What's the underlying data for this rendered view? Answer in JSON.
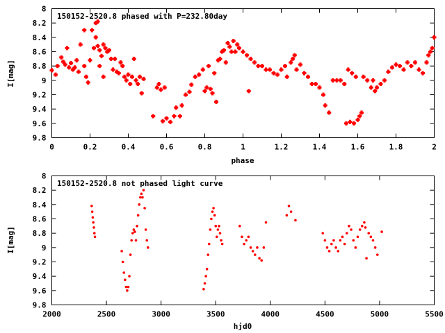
{
  "chart_data": [
    {
      "type": "scatter",
      "title": "150152-2520.8 phased with P=232.80day",
      "xlabel": "phase",
      "ylabel": "I[mag]",
      "xlim": [
        0,
        2
      ],
      "ylim": [
        8,
        9.8
      ],
      "y_inverted": true,
      "xticks": [
        "0",
        "0.2",
        "0.4",
        "0.6",
        "0.8",
        "1",
        "1.2",
        "1.4",
        "1.6",
        "1.8",
        "2"
      ],
      "yticks": [
        "8",
        "8.2",
        "8.4",
        "8.6",
        "8.8",
        "9",
        "9.2",
        "9.4",
        "9.6",
        "9.8"
      ],
      "marker_color": "#ff0000",
      "series": [
        {
          "points": [
            [
              0.0,
              8.86
            ],
            [
              0.02,
              8.92
            ],
            [
              0.03,
              8.8
            ],
            [
              0.05,
              8.68
            ],
            [
              0.06,
              8.74
            ],
            [
              0.07,
              8.78
            ],
            [
              0.08,
              8.55
            ],
            [
              0.09,
              8.82
            ],
            [
              0.1,
              8.76
            ],
            [
              0.11,
              8.85
            ],
            [
              0.12,
              8.82
            ],
            [
              0.13,
              8.72
            ],
            [
              0.14,
              8.88
            ],
            [
              0.15,
              8.5
            ],
            [
              0.17,
              8.3
            ],
            [
              0.17,
              8.8
            ],
            [
              0.18,
              8.95
            ],
            [
              0.19,
              9.03
            ],
            [
              0.2,
              8.72
            ],
            [
              0.21,
              8.3
            ],
            [
              0.22,
              8.55
            ],
            [
              0.23,
              8.2
            ],
            [
              0.23,
              8.4
            ],
            [
              0.24,
              8.18
            ],
            [
              0.24,
              8.52
            ],
            [
              0.25,
              8.8
            ],
            [
              0.25,
              8.58
            ],
            [
              0.26,
              8.66
            ],
            [
              0.27,
              8.5
            ],
            [
              0.27,
              8.95
            ],
            [
              0.28,
              8.55
            ],
            [
              0.29,
              8.6
            ],
            [
              0.3,
              8.58
            ],
            [
              0.31,
              8.7
            ],
            [
              0.32,
              8.85
            ],
            [
              0.33,
              8.7
            ],
            [
              0.34,
              8.88
            ],
            [
              0.35,
              8.9
            ],
            [
              0.36,
              8.75
            ],
            [
              0.37,
              8.8
            ],
            [
              0.38,
              8.95
            ],
            [
              0.39,
              9.0
            ],
            [
              0.4,
              8.92
            ],
            [
              0.41,
              9.05
            ],
            [
              0.42,
              8.95
            ],
            [
              0.43,
              8.7
            ],
            [
              0.44,
              9.0
            ],
            [
              0.45,
              9.05
            ],
            [
              0.46,
              8.95
            ],
            [
              0.47,
              9.18
            ],
            [
              0.48,
              8.98
            ],
            [
              0.53,
              9.5
            ],
            [
              0.55,
              9.1
            ],
            [
              0.56,
              9.05
            ],
            [
              0.57,
              9.13
            ],
            [
              0.58,
              9.57
            ],
            [
              0.59,
              9.1
            ],
            [
              0.6,
              9.53
            ],
            [
              0.62,
              9.58
            ],
            [
              0.64,
              9.5
            ],
            [
              0.65,
              9.38
            ],
            [
              0.67,
              9.5
            ],
            [
              0.68,
              9.35
            ],
            [
              0.7,
              9.2
            ],
            [
              0.72,
              9.16
            ],
            [
              0.73,
              9.06
            ],
            [
              0.75,
              8.95
            ],
            [
              0.77,
              8.92
            ],
            [
              0.79,
              8.85
            ],
            [
              0.8,
              9.15
            ],
            [
              0.81,
              9.1
            ],
            [
              0.82,
              8.8
            ],
            [
              0.83,
              9.12
            ],
            [
              0.84,
              9.18
            ],
            [
              0.85,
              8.9
            ],
            [
              0.86,
              9.3
            ],
            [
              0.87,
              8.72
            ],
            [
              0.88,
              8.7
            ],
            [
              0.89,
              8.6
            ],
            [
              0.9,
              8.58
            ],
            [
              0.91,
              8.75
            ],
            [
              0.92,
              8.48
            ],
            [
              0.93,
              8.53
            ],
            [
              0.94,
              8.6
            ],
            [
              0.95,
              8.45
            ],
            [
              0.96,
              8.6
            ],
            [
              0.97,
              8.5
            ],
            [
              0.98,
              8.55
            ],
            [
              1.0,
              8.6
            ],
            [
              1.02,
              8.65
            ],
            [
              1.03,
              9.15
            ],
            [
              1.04,
              8.7
            ],
            [
              1.06,
              8.75
            ],
            [
              1.08,
              8.8
            ],
            [
              1.1,
              8.8
            ],
            [
              1.12,
              8.85
            ],
            [
              1.14,
              8.85
            ],
            [
              1.16,
              8.9
            ],
            [
              1.18,
              8.92
            ],
            [
              1.2,
              8.85
            ],
            [
              1.22,
              8.8
            ],
            [
              1.23,
              8.95
            ],
            [
              1.25,
              8.75
            ],
            [
              1.26,
              8.7
            ],
            [
              1.27,
              8.65
            ],
            [
              1.28,
              8.85
            ],
            [
              1.3,
              8.78
            ],
            [
              1.32,
              8.9
            ],
            [
              1.34,
              8.95
            ],
            [
              1.36,
              9.05
            ],
            [
              1.38,
              9.05
            ],
            [
              1.4,
              9.1
            ],
            [
              1.42,
              9.2
            ],
            [
              1.43,
              9.35
            ],
            [
              1.45,
              9.45
            ],
            [
              1.47,
              9.0
            ],
            [
              1.49,
              9.0
            ],
            [
              1.51,
              9.0
            ],
            [
              1.53,
              9.05
            ],
            [
              1.54,
              9.6
            ],
            [
              1.55,
              8.85
            ],
            [
              1.56,
              9.58
            ],
            [
              1.57,
              8.9
            ],
            [
              1.58,
              9.6
            ],
            [
              1.59,
              8.95
            ],
            [
              1.6,
              9.55
            ],
            [
              1.61,
              9.5
            ],
            [
              1.62,
              9.45
            ],
            [
              1.63,
              8.95
            ],
            [
              1.65,
              9.0
            ],
            [
              1.67,
              9.1
            ],
            [
              1.68,
              9.0
            ],
            [
              1.69,
              9.15
            ],
            [
              1.7,
              9.1
            ],
            [
              1.72,
              9.05
            ],
            [
              1.74,
              9.0
            ],
            [
              1.76,
              8.88
            ],
            [
              1.78,
              8.82
            ],
            [
              1.8,
              8.78
            ],
            [
              1.82,
              8.8
            ],
            [
              1.84,
              8.85
            ],
            [
              1.86,
              8.75
            ],
            [
              1.88,
              8.8
            ],
            [
              1.9,
              8.75
            ],
            [
              1.92,
              8.85
            ],
            [
              1.94,
              8.9
            ],
            [
              1.96,
              8.75
            ],
            [
              1.97,
              8.65
            ],
            [
              1.98,
              8.6
            ],
            [
              1.99,
              8.55
            ],
            [
              2.0,
              8.4
            ]
          ]
        }
      ]
    },
    {
      "type": "scatter",
      "title": "150152-2520.8 not phased light curve",
      "xlabel": "hjd0",
      "ylabel": "I[mag]",
      "xlim": [
        2000,
        5500
      ],
      "ylim": [
        8,
        9.8
      ],
      "y_inverted": true,
      "xticks": [
        "2000",
        "2500",
        "3000",
        "3500",
        "4000",
        "4500",
        "5000",
        "5500"
      ],
      "yticks": [
        "8",
        "8.2",
        "8.4",
        "8.6",
        "8.8",
        "9",
        "9.2",
        "9.4",
        "9.6",
        "9.8"
      ],
      "marker_color": "#ff0000",
      "series": [
        {
          "points": [
            [
              2365,
              8.42
            ],
            [
              2370,
              8.5
            ],
            [
              2375,
              8.58
            ],
            [
              2380,
              8.65
            ],
            [
              2385,
              8.72
            ],
            [
              2390,
              8.8
            ],
            [
              2395,
              8.85
            ],
            [
              2640,
              9.05
            ],
            [
              2650,
              9.2
            ],
            [
              2660,
              9.35
            ],
            [
              2670,
              9.45
            ],
            [
              2680,
              9.55
            ],
            [
              2690,
              9.6
            ],
            [
              2700,
              9.55
            ],
            [
              2710,
              9.4
            ],
            [
              2720,
              9.1
            ],
            [
              2730,
              8.9
            ],
            [
              2740,
              8.8
            ],
            [
              2750,
              8.75
            ],
            [
              2760,
              8.78
            ],
            [
              2770,
              8.9
            ],
            [
              2780,
              8.7
            ],
            [
              2790,
              8.55
            ],
            [
              2800,
              8.4
            ],
            [
              2810,
              8.3
            ],
            [
              2820,
              8.25
            ],
            [
              2830,
              8.3
            ],
            [
              2840,
              8.2
            ],
            [
              2850,
              8.45
            ],
            [
              2860,
              8.75
            ],
            [
              2870,
              8.9
            ],
            [
              2880,
              9.0
            ],
            [
              3390,
              9.58
            ],
            [
              3400,
              9.5
            ],
            [
              3410,
              9.4
            ],
            [
              3420,
              9.3
            ],
            [
              3430,
              9.1
            ],
            [
              3440,
              8.95
            ],
            [
              3450,
              8.75
            ],
            [
              3460,
              8.6
            ],
            [
              3470,
              8.5
            ],
            [
              3480,
              8.45
            ],
            [
              3490,
              8.55
            ],
            [
              3500,
              8.7
            ],
            [
              3510,
              8.85
            ],
            [
              3520,
              8.75
            ],
            [
              3530,
              8.7
            ],
            [
              3540,
              8.8
            ],
            [
              3550,
              8.9
            ],
            [
              3560,
              8.95
            ],
            [
              3720,
              8.7
            ],
            [
              3740,
              8.85
            ],
            [
              3760,
              8.95
            ],
            [
              3780,
              8.9
            ],
            [
              3800,
              8.85
            ],
            [
              3820,
              9.0
            ],
            [
              3840,
              9.05
            ],
            [
              3860,
              9.1
            ],
            [
              3880,
              9.0
            ],
            [
              3900,
              9.15
            ],
            [
              3920,
              9.18
            ],
            [
              3940,
              9.0
            ],
            [
              3960,
              8.65
            ],
            [
              4150,
              8.55
            ],
            [
              4170,
              8.42
            ],
            [
              4190,
              8.5
            ],
            [
              4230,
              8.62
            ],
            [
              4480,
              8.8
            ],
            [
              4500,
              8.9
            ],
            [
              4520,
              9.0
            ],
            [
              4540,
              9.05
            ],
            [
              4560,
              8.95
            ],
            [
              4580,
              8.9
            ],
            [
              4600,
              9.0
            ],
            [
              4620,
              9.05
            ],
            [
              4640,
              8.9
            ],
            [
              4660,
              8.85
            ],
            [
              4680,
              8.95
            ],
            [
              4700,
              8.8
            ],
            [
              4720,
              8.7
            ],
            [
              4740,
              8.75
            ],
            [
              4760,
              8.9
            ],
            [
              4780,
              9.0
            ],
            [
              4800,
              8.85
            ],
            [
              4820,
              8.75
            ],
            [
              4840,
              8.7
            ],
            [
              4860,
              8.65
            ],
            [
              4870,
              8.72
            ],
            [
              4880,
              9.15
            ],
            [
              4900,
              8.8
            ],
            [
              4920,
              8.85
            ],
            [
              4940,
              8.9
            ],
            [
              4960,
              9.0
            ],
            [
              4980,
              9.1
            ],
            [
              5020,
              8.78
            ]
          ]
        }
      ]
    }
  ]
}
